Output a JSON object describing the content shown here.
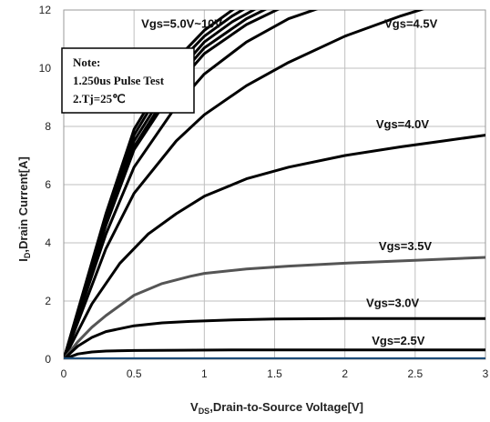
{
  "chart_data": {
    "type": "line",
    "xlabel_sub": "DS",
    "xlabel_rest": ",Drain-to-Source Voltage[V]",
    "xlabel_v": "V",
    "ylabel_i": "I",
    "ylabel_sub": "D",
    "ylabel_rest": ",Drain Current[A]",
    "xlim": [
      0,
      3
    ],
    "ylim": [
      0,
      12
    ],
    "x_ticks": [
      0,
      0.5,
      1,
      1.5,
      2,
      2.5,
      3
    ],
    "x_tick_labels": [
      "0",
      "0.5",
      "1",
      "1.5",
      "2",
      "2.5",
      "3"
    ],
    "y_ticks": [
      0,
      2,
      4,
      6,
      8,
      10,
      12
    ],
    "y_tick_labels": [
      "0",
      "2",
      "4",
      "6",
      "8",
      "10",
      "12"
    ],
    "grid": true,
    "note": {
      "lines": [
        "Note:",
        "1.250us Pulse Test",
        "2.Tj=25℃"
      ]
    },
    "labels": [
      {
        "text": "Vgs=5.0V~10V",
        "x": 0.84,
        "y": 11.55
      },
      {
        "text": "Vgs=4.5V",
        "x": 2.47,
        "y": 11.55
      },
      {
        "text": "Vgs=4.0V",
        "x": 2.41,
        "y": 8.1
      },
      {
        "text": "Vgs=3.5V",
        "x": 2.43,
        "y": 3.9
      },
      {
        "text": "Vgs=3.0V",
        "x": 2.34,
        "y": 1.95
      },
      {
        "text": "Vgs=2.5V",
        "x": 2.38,
        "y": 0.65
      }
    ],
    "series": [
      {
        "color": "#000000",
        "x": [
          0,
          0.3,
          0.5,
          0.8,
          1.0,
          1.2,
          1.4
        ],
        "y": [
          0,
          5.0,
          7.9,
          10.3,
          11.3,
          12.0,
          12.6
        ]
      },
      {
        "color": "#000000",
        "x": [
          0,
          0.3,
          0.5,
          0.8,
          1.0,
          1.2,
          1.45
        ],
        "y": [
          0,
          4.9,
          7.7,
          10.1,
          11.1,
          11.8,
          12.5
        ]
      },
      {
        "color": "#000000",
        "x": [
          0,
          0.3,
          0.5,
          0.8,
          1.0,
          1.2,
          1.5
        ],
        "y": [
          0,
          4.8,
          7.5,
          9.8,
          10.9,
          11.6,
          12.4
        ]
      },
      {
        "color": "#000000",
        "x": [
          0,
          0.3,
          0.5,
          0.8,
          1.0,
          1.3,
          1.6
        ],
        "y": [
          0,
          4.6,
          7.2,
          9.4,
          10.5,
          11.5,
          12.2
        ]
      },
      {
        "color": "#000000",
        "x": [
          0,
          0.3,
          0.5,
          0.8,
          1.0,
          1.3,
          1.55
        ],
        "y": [
          0,
          4.7,
          7.3,
          9.6,
          10.7,
          11.7,
          12.3
        ]
      },
      {
        "color": "#000000",
        "x": [
          0,
          0.3,
          0.5,
          0.8,
          1.0,
          1.3,
          1.6,
          1.9
        ],
        "y": [
          0,
          4.3,
          6.6,
          8.7,
          9.8,
          10.9,
          11.7,
          12.2
        ]
      },
      {
        "color": "#000000",
        "x": [
          0,
          0.3,
          0.5,
          0.8,
          1.0,
          1.3,
          1.6,
          2.0,
          2.4,
          2.6
        ],
        "y": [
          0,
          3.8,
          5.7,
          7.5,
          8.4,
          9.4,
          10.2,
          11.1,
          11.8,
          12.1
        ]
      },
      {
        "color": "#000000",
        "x": [
          0,
          0.2,
          0.4,
          0.6,
          0.8,
          1.0,
          1.3,
          1.6,
          2.0,
          2.4,
          2.7,
          3.0
        ],
        "y": [
          0,
          1.9,
          3.3,
          4.3,
          5.0,
          5.6,
          6.2,
          6.6,
          7.0,
          7.3,
          7.5,
          7.7
        ]
      },
      {
        "color": "#555555",
        "x": [
          0,
          0.1,
          0.2,
          0.3,
          0.5,
          0.7,
          0.9,
          1.0,
          1.3,
          1.6,
          2.0,
          2.5,
          3.0
        ],
        "y": [
          0,
          0.6,
          1.1,
          1.5,
          2.2,
          2.6,
          2.85,
          2.95,
          3.1,
          3.2,
          3.3,
          3.4,
          3.5
        ]
      },
      {
        "color": "#000000",
        "x": [
          0,
          0.1,
          0.2,
          0.3,
          0.5,
          0.7,
          0.9,
          1.2,
          1.5,
          2.0,
          2.5,
          3.0
        ],
        "y": [
          0,
          0.45,
          0.75,
          0.95,
          1.15,
          1.25,
          1.3,
          1.35,
          1.38,
          1.4,
          1.4,
          1.4
        ]
      },
      {
        "color": "#000000",
        "x": [
          0,
          0.1,
          0.2,
          0.3,
          0.5,
          0.8,
          1.2,
          2.0,
          3.0
        ],
        "y": [
          0,
          0.18,
          0.25,
          0.28,
          0.3,
          0.31,
          0.32,
          0.32,
          0.32
        ]
      },
      {
        "color": "#1f4e79",
        "x": [
          0,
          3.0
        ],
        "y": [
          0.02,
          0.02
        ]
      }
    ]
  }
}
